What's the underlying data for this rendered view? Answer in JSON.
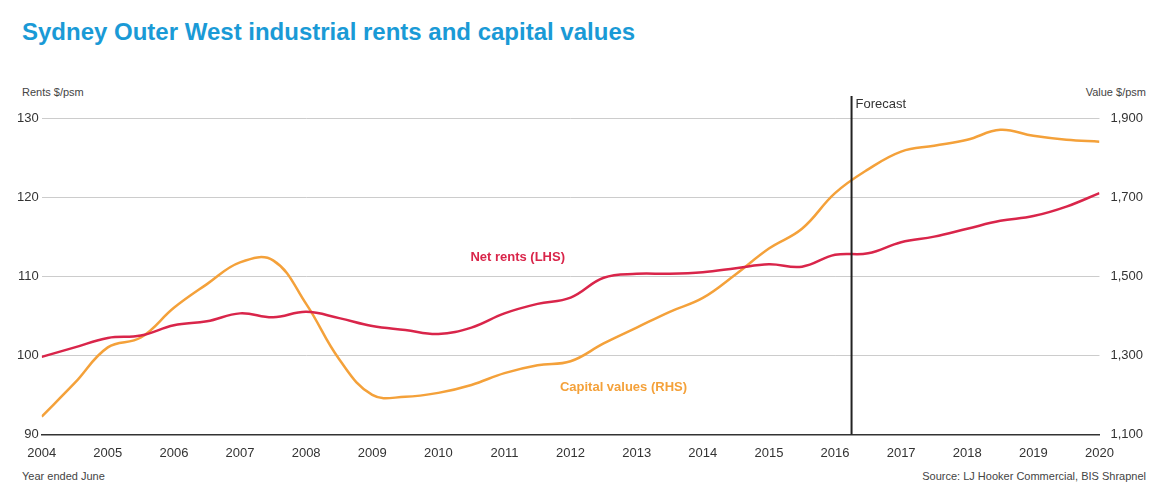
{
  "chart_data": {
    "type": "line",
    "title": "Sydney Outer West industrial rents and capital values",
    "y_label": "Rents $/psm",
    "y2_label": "Value $/psm",
    "x_label": "Year ended June",
    "source": "Source: LJ Hooker Commercial, BIS Shrapnel",
    "x": [
      2004,
      2004.5,
      2005,
      2005.5,
      2006,
      2006.5,
      2007,
      2007.5,
      2008,
      2008.5,
      2009,
      2009.5,
      2010,
      2010.5,
      2011,
      2011.5,
      2012,
      2012.5,
      2013,
      2013.5,
      2014,
      2014.5,
      2015,
      2015.5,
      2016,
      2016.5,
      2017,
      2017.5,
      2018,
      2018.5,
      2019,
      2019.5,
      2020
    ],
    "series": [
      {
        "name": "Net rents (LHS)",
        "color": "#d9254a",
        "values": [
          99.8,
          101,
          102.2,
          102.5,
          103.8,
          104.3,
          105.3,
          104.8,
          105.5,
          104.7,
          103.7,
          103.2,
          102.7,
          103.5,
          105.3,
          106.5,
          107.3,
          109.8,
          110.3,
          110.3,
          110.5,
          111,
          111.5,
          111.2,
          112.7,
          112.9,
          114.3,
          115,
          116,
          117,
          117.6,
          118.8,
          120.5
        ]
      },
      {
        "name": "Capital values (RHS)",
        "color": "#f4a13a",
        "axis": "y2",
        "values": [
          1145,
          1230,
          1320,
          1345,
          1420,
          1480,
          1535,
          1540,
          1430,
          1290,
          1200,
          1195,
          1205,
          1225,
          1255,
          1275,
          1285,
          1330,
          1370,
          1410,
          1445,
          1505,
          1570,
          1620,
          1710,
          1770,
          1815,
          1830,
          1845,
          1870,
          1855,
          1845,
          1840
        ]
      }
    ],
    "xlim": [
      2004,
      2020
    ],
    "xticks": [
      2004,
      2005,
      2006,
      2007,
      2008,
      2009,
      2010,
      2011,
      2012,
      2013,
      2014,
      2015,
      2016,
      2017,
      2018,
      2019,
      2020
    ],
    "ylim": [
      90,
      130
    ],
    "yticks": [
      90,
      100,
      110,
      120,
      130
    ],
    "y2lim": [
      1100,
      1900
    ],
    "y2ticks": [
      {
        "value": 1100,
        "label": "1,100"
      },
      {
        "value": 1300,
        "label": "1,300"
      },
      {
        "value": 1500,
        "label": "1,500"
      },
      {
        "value": 1700,
        "label": "1,700"
      },
      {
        "value": 1900,
        "label": "1,900"
      }
    ],
    "annotations": [
      {
        "text": "Forecast",
        "x": 2016.25
      }
    ],
    "grid": true
  }
}
